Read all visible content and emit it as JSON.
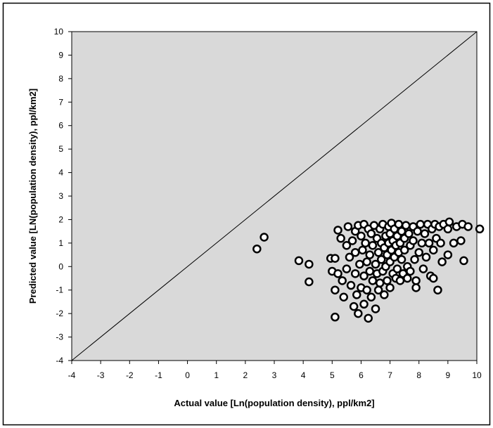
{
  "chart_data": {
    "type": "scatter",
    "xlabel": "Actual value [Ln(population density), ppl/km2]",
    "ylabel": "Predicted value [LN(population density), ppl/km2]",
    "xlim": [
      -4,
      10
    ],
    "ylim": [
      -4,
      10
    ],
    "x_ticks": [
      "-4",
      "-3",
      "-2",
      "-1",
      "0",
      "1",
      "2",
      "3",
      "4",
      "5",
      "6",
      "7",
      "8",
      "9",
      "10"
    ],
    "y_ticks": [
      "-4",
      "-3",
      "-2",
      "-1",
      "0",
      "1",
      "2",
      "3",
      "4",
      "5",
      "6",
      "7",
      "8",
      "9",
      "10"
    ],
    "reference_line": {
      "from": [
        -4,
        -4
      ],
      "to": [
        10,
        10
      ]
    },
    "grid": false,
    "legend": "none",
    "colors": {
      "plot_background": "#d9d9d9",
      "marker_edge": "#000000",
      "marker_fill": "#ffffff",
      "line": "#000000"
    },
    "points": [
      [
        2.4,
        0.75
      ],
      [
        2.65,
        1.25
      ],
      [
        3.85,
        0.25
      ],
      [
        4.2,
        0.1
      ],
      [
        4.2,
        -0.65
      ],
      [
        4.95,
        0.35
      ],
      [
        5.0,
        -0.2
      ],
      [
        5.1,
        0.35
      ],
      [
        5.1,
        -1.0
      ],
      [
        5.1,
        -2.15
      ],
      [
        5.2,
        1.55
      ],
      [
        5.2,
        -0.3
      ],
      [
        5.3,
        1.2
      ],
      [
        5.35,
        -0.6
      ],
      [
        5.4,
        -1.3
      ],
      [
        5.5,
        0.9
      ],
      [
        5.5,
        -0.1
      ],
      [
        5.55,
        1.7
      ],
      [
        5.6,
        0.4
      ],
      [
        5.65,
        -0.8
      ],
      [
        5.7,
        1.1
      ],
      [
        5.75,
        -1.7
      ],
      [
        5.8,
        1.5
      ],
      [
        5.8,
        0.6
      ],
      [
        5.8,
        -0.3
      ],
      [
        5.85,
        -1.2
      ],
      [
        5.9,
        1.75
      ],
      [
        5.9,
        -2.0
      ],
      [
        5.95,
        0.1
      ],
      [
        6.0,
        1.3
      ],
      [
        6.0,
        -0.9
      ],
      [
        6.05,
        0.7
      ],
      [
        6.1,
        1.8
      ],
      [
        6.1,
        -0.4
      ],
      [
        6.1,
        -1.6
      ],
      [
        6.15,
        1.0
      ],
      [
        6.2,
        0.2
      ],
      [
        6.2,
        -1.0
      ],
      [
        6.25,
        1.6
      ],
      [
        6.25,
        -2.2
      ],
      [
        6.3,
        0.5
      ],
      [
        6.3,
        -0.2
      ],
      [
        6.35,
        1.4
      ],
      [
        6.35,
        -1.3
      ],
      [
        6.4,
        0.9
      ],
      [
        6.4,
        -0.6
      ],
      [
        6.45,
        1.75
      ],
      [
        6.5,
        0.1
      ],
      [
        6.5,
        -1.8
      ],
      [
        6.55,
        1.2
      ],
      [
        6.55,
        -0.3
      ],
      [
        6.6,
        0.6
      ],
      [
        6.6,
        -1.0
      ],
      [
        6.65,
        1.6
      ],
      [
        6.65,
        -0.7
      ],
      [
        6.7,
        0.3
      ],
      [
        6.7,
        1.0
      ],
      [
        6.75,
        -0.2
      ],
      [
        6.75,
        1.8
      ],
      [
        6.8,
        0.8
      ],
      [
        6.8,
        -1.2
      ],
      [
        6.85,
        1.3
      ],
      [
        6.85,
        0.0
      ],
      [
        6.9,
        0.5
      ],
      [
        6.9,
        -0.6
      ],
      [
        6.95,
        1.7
      ],
      [
        6.95,
        1.0
      ],
      [
        7.0,
        0.2
      ],
      [
        7.0,
        1.4
      ],
      [
        7.0,
        -0.9
      ],
      [
        7.05,
        0.7
      ],
      [
        7.05,
        1.85
      ],
      [
        7.1,
        -0.3
      ],
      [
        7.1,
        1.1
      ],
      [
        7.15,
        0.4
      ],
      [
        7.15,
        1.6
      ],
      [
        7.2,
        -0.5
      ],
      [
        7.2,
        0.9
      ],
      [
        7.25,
        1.3
      ],
      [
        7.25,
        -0.1
      ],
      [
        7.3,
        1.8
      ],
      [
        7.3,
        0.6
      ],
      [
        7.35,
        -0.6
      ],
      [
        7.35,
        1.0
      ],
      [
        7.4,
        0.3
      ],
      [
        7.4,
        1.5
      ],
      [
        7.45,
        -0.3
      ],
      [
        7.5,
        1.2
      ],
      [
        7.5,
        0.7
      ],
      [
        7.55,
        1.75
      ],
      [
        7.6,
        0.0
      ],
      [
        7.6,
        -0.5
      ],
      [
        7.65,
        1.4
      ],
      [
        7.7,
        0.9
      ],
      [
        7.7,
        -0.2
      ],
      [
        7.8,
        1.7
      ],
      [
        7.8,
        1.1
      ],
      [
        7.85,
        0.3
      ],
      [
        7.9,
        -0.6
      ],
      [
        7.9,
        -0.9
      ],
      [
        7.95,
        1.5
      ],
      [
        8.0,
        0.6
      ],
      [
        8.05,
        1.8
      ],
      [
        8.1,
        1.0
      ],
      [
        8.15,
        -0.1
      ],
      [
        8.2,
        1.4
      ],
      [
        8.25,
        0.4
      ],
      [
        8.3,
        1.8
      ],
      [
        8.35,
        1.0
      ],
      [
        8.4,
        -0.4
      ],
      [
        8.45,
        1.6
      ],
      [
        8.5,
        0.7
      ],
      [
        8.5,
        -0.5
      ],
      [
        8.55,
        1.8
      ],
      [
        8.6,
        1.2
      ],
      [
        8.65,
        -1.0
      ],
      [
        8.7,
        1.7
      ],
      [
        8.75,
        1.0
      ],
      [
        8.8,
        0.2
      ],
      [
        8.85,
        1.8
      ],
      [
        9.0,
        0.5
      ],
      [
        9.0,
        1.6
      ],
      [
        9.05,
        1.9
      ],
      [
        9.2,
        1.0
      ],
      [
        9.3,
        1.7
      ],
      [
        9.45,
        1.1
      ],
      [
        9.5,
        1.8
      ],
      [
        9.55,
        0.25
      ],
      [
        9.7,
        1.7
      ],
      [
        10.1,
        1.6
      ]
    ]
  }
}
